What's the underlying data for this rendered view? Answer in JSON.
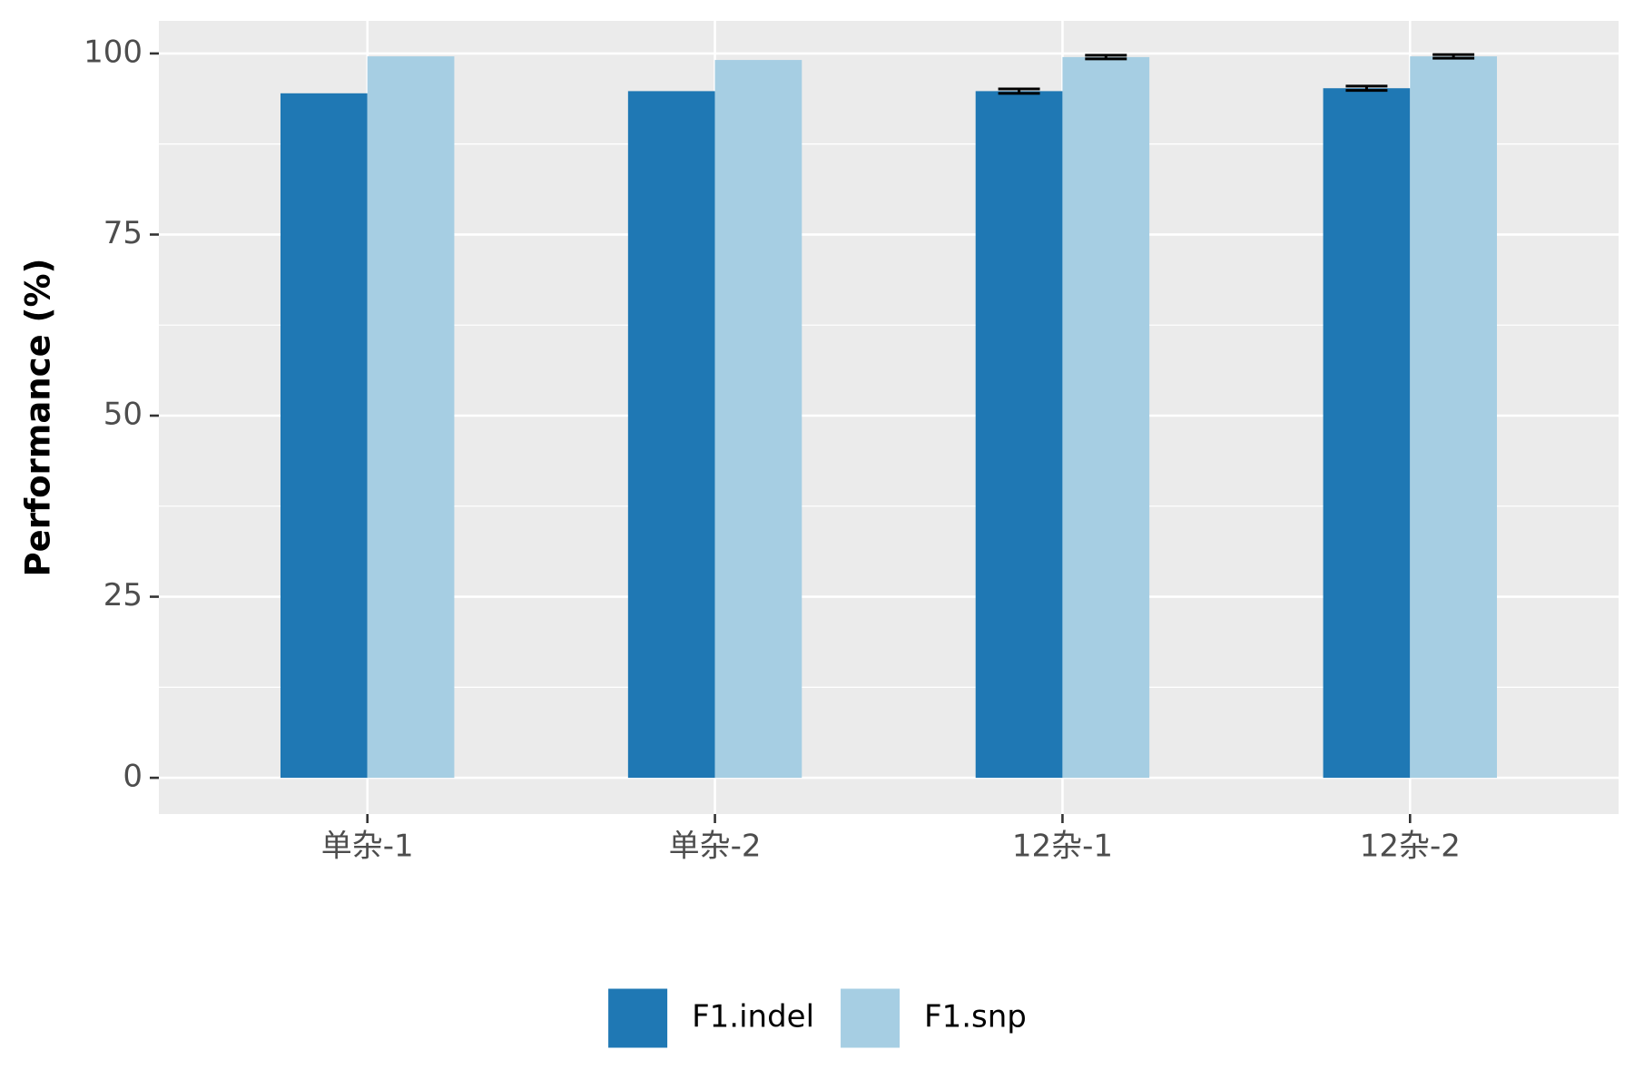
{
  "chart_data": {
    "type": "bar",
    "y_label": "Performance (%)",
    "categories": [
      "单杂-1",
      "单杂-2",
      "12杂-1",
      "12杂-2"
    ],
    "series": [
      {
        "name": "F1.indel",
        "color": "#1f78b4",
        "values": [
          94.5,
          94.8,
          94.8,
          95.2
        ],
        "errors": [
          null,
          null,
          0.3,
          0.3
        ]
      },
      {
        "name": "F1.snp",
        "color": "#a6cee3",
        "values": [
          99.6,
          99.1,
          99.5,
          99.6
        ],
        "errors": [
          null,
          null,
          0.25,
          0.25
        ]
      }
    ],
    "ylim": [
      -5,
      104.5
    ],
    "yticks": [
      0,
      25,
      50,
      75,
      100
    ],
    "minor_yticks": [
      12.5,
      37.5,
      62.5,
      87.5
    ],
    "grid": true,
    "legend": "bottom"
  }
}
